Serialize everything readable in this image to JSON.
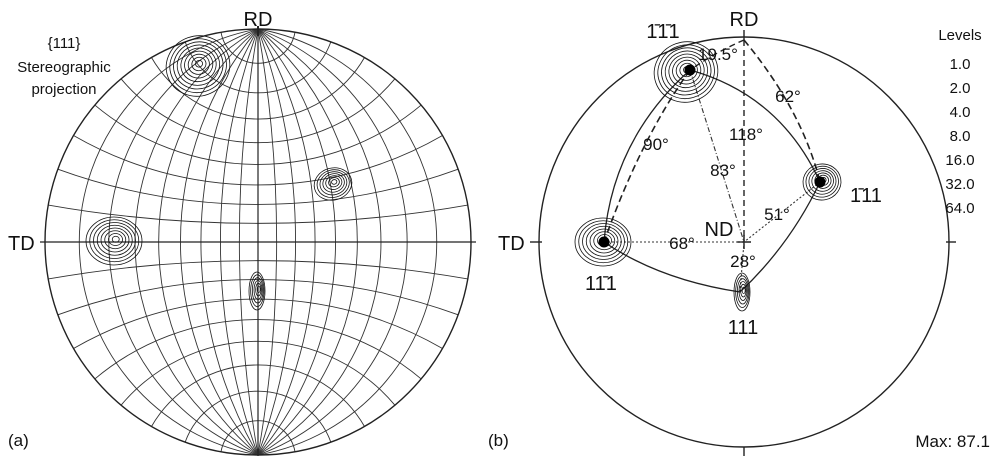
{
  "panel_a": {
    "tag": "(a)",
    "title_line1": "{111}",
    "title_line2": "Stereographic",
    "title_line3": "projection",
    "axis_rd": "RD",
    "axis_td": "TD"
  },
  "panel_b": {
    "tag": "(b)",
    "axis_rd": "RD",
    "axis_td": "TD",
    "center_label": "ND",
    "poles": [
      {
        "id": "pole-1b1b1",
        "label": "1̄1̄1"
      },
      {
        "id": "pole-1b11",
        "label": "1̄11"
      },
      {
        "id": "pole-11b1",
        "label": "11̄1"
      },
      {
        "id": "pole-111",
        "label": "111"
      }
    ],
    "angles": [
      "19.5°",
      "62°",
      "90°",
      "118°",
      "83°",
      "51°",
      "68°",
      "28°"
    ],
    "levels_title": "Levels",
    "levels": [
      "1.0",
      "2.0",
      "4.0",
      "8.0",
      "16.0",
      "32.0",
      "64.0"
    ],
    "max_label": "Max: 87.1"
  }
}
